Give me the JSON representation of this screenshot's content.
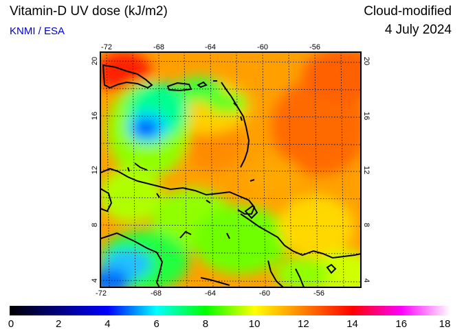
{
  "header": {
    "title": "Vitamin-D UV dose (kJ/m2)",
    "credit": "KNMI / ESA",
    "product": "Cloud-modified",
    "date": "4 July 2024"
  },
  "map": {
    "lon_ticks": [
      "-72",
      "-68",
      "-64",
      "-60",
      "-56"
    ],
    "lat_ticks": [
      "20",
      "16",
      "12",
      "8",
      "4"
    ],
    "lon_range": [
      -73,
      -53
    ],
    "lat_range": [
      3,
      21
    ]
  },
  "colorbar": {
    "labels": [
      "0",
      "2",
      "4",
      "6",
      "8",
      "10",
      "12",
      "14",
      "16",
      "18"
    ],
    "range": [
      0,
      18
    ],
    "colors": [
      "#000000",
      "#000080",
      "#0000ff",
      "#00ffff",
      "#00ff00",
      "#ffff00",
      "#ff8000",
      "#ff0000",
      "#ff00ff",
      "#ffffff"
    ]
  }
}
